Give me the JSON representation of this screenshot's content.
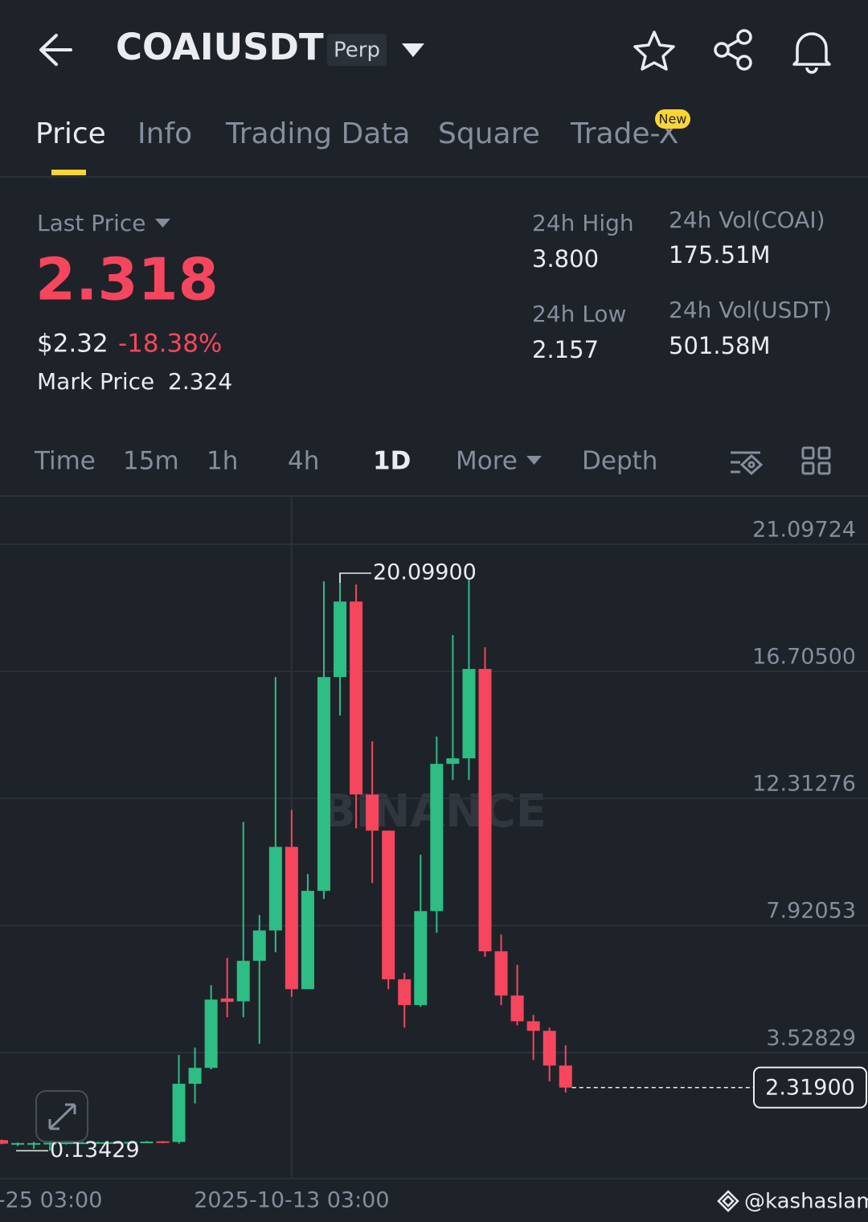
{
  "header": {
    "symbol": "COAIUSDT",
    "badge": "Perp"
  },
  "tabs": [
    "Price",
    "Info",
    "Trading Data",
    "Square",
    "Trade-X"
  ],
  "new_badge": "New",
  "stats": {
    "last_price_label": "Last Price",
    "last_price": "2.318",
    "usd_price": "$2.32",
    "change": "-18.38%",
    "mark_price_label": "Mark Price",
    "mark_price": "2.324",
    "high_label": "24h High",
    "high": "3.800",
    "low_label": "24h Low",
    "low": "2.157",
    "vol_coai_label": "24h Vol(COAI)",
    "vol_coai": "175.51M",
    "vol_usdt_label": "24h Vol(USDT)",
    "vol_usdt": "501.58M"
  },
  "intervals": [
    "Time",
    "15m",
    "1h",
    "4h",
    "1D",
    "More",
    "Depth"
  ],
  "chart_data": {
    "type": "candlestick",
    "watermark": "BINANCE",
    "up_color": "#2ebd85",
    "down_color": "#f6465d",
    "categories": [
      null,
      null,
      null,
      "-25 03:00",
      null,
      null,
      null,
      null,
      null,
      null,
      null,
      null,
      null,
      null,
      null,
      null,
      null,
      null,
      "2025-10-13 03:00",
      null,
      null,
      null,
      null,
      null,
      null,
      null,
      null,
      null,
      null,
      null,
      null,
      null,
      null,
      null,
      null,
      null
    ],
    "open": [
      0.5,
      0.38,
      0.4,
      0.4,
      0.41,
      0.42,
      0.42,
      0.43,
      0.43,
      0.44,
      0.46,
      0.44,
      2.45,
      3.0,
      5.4,
      5.3,
      6.7,
      7.75,
      10.64,
      5.72,
      9.12,
      16.51,
      19.12,
      12.45,
      11.2,
      6.06,
      5.17,
      8.42,
      13.51,
      13.7,
      16.79,
      7.03,
      5.5,
      4.61,
      4.28,
      3.08
    ],
    "high": [
      0.52,
      0.42,
      0.44,
      0.43,
      0.45,
      0.44,
      0.45,
      0.45,
      0.46,
      0.47,
      0.47,
      3.45,
      3.7,
      5.86,
      6.8,
      11.5,
      8.28,
      16.51,
      11.92,
      9.7,
      19.82,
      20.099,
      19.71,
      14.29,
      11.2,
      6.28,
      10.37,
      14.45,
      17.96,
      19.9,
      17.54,
      7.61,
      6.56,
      4.83,
      4.39,
      3.78
    ],
    "low": [
      0.36,
      0.3,
      0.2,
      0.13429,
      0.35,
      0.38,
      0.39,
      0.4,
      0.4,
      0.41,
      0.4,
      0.38,
      1.77,
      2.95,
      4.75,
      4.75,
      3.83,
      7.0,
      5.45,
      5.72,
      8.84,
      15.18,
      11.28,
      9.39,
      5.72,
      4.39,
      5.11,
      7.67,
      12.95,
      12.95,
      6.84,
      5.17,
      4.47,
      3.27,
      2.53,
      2.15
    ],
    "close": [
      0.38,
      0.4,
      0.4,
      0.41,
      0.42,
      0.42,
      0.43,
      0.43,
      0.44,
      0.45,
      0.42,
      2.45,
      3.0,
      5.36,
      5.28,
      6.7,
      7.75,
      10.64,
      5.72,
      9.12,
      16.51,
      19.12,
      12.45,
      11.2,
      6.06,
      5.17,
      8.42,
      13.51,
      13.7,
      16.79,
      7.03,
      5.5,
      4.61,
      4.28,
      3.08,
      2.319
    ],
    "ylim": [
      -0.8,
      22.74
    ],
    "yticks": [
      21.09724,
      {
        "value": 16.705,
        "label": "16.70500"
      },
      12.31276,
      7.92053,
      3.52829
    ],
    "high_label": {
      "value": 20.099,
      "label": "20.09900"
    },
    "low_label": {
      "value": 0.13429,
      "label": "0.13429"
    },
    "last_label": {
      "value": 2.319,
      "label": "2.31900"
    },
    "grid": true
  },
  "footer": {
    "credit": "@kashaslam"
  }
}
